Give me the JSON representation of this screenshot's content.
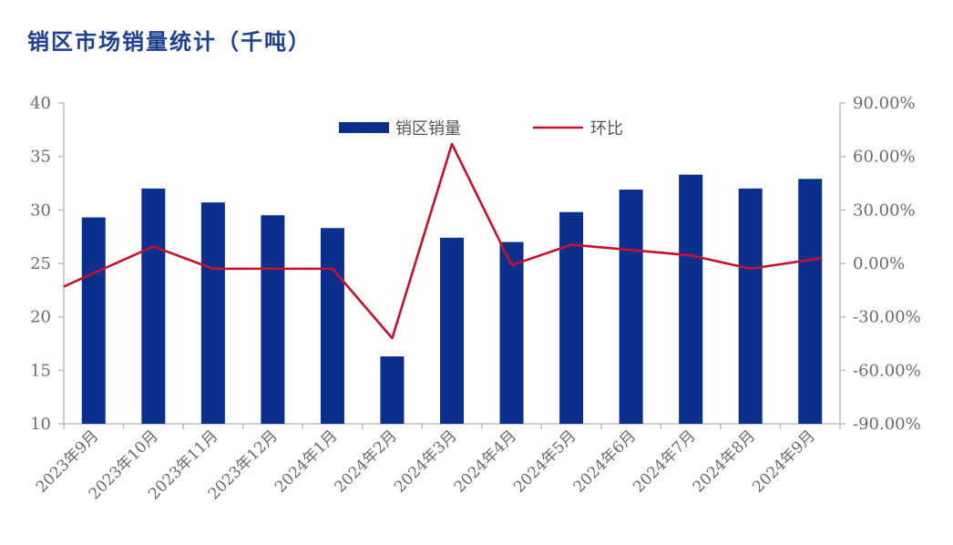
{
  "chart_data": {
    "type": "bar",
    "title": "销区市场销量统计（千吨）",
    "categories": [
      "2023年9月",
      "2023年10月",
      "2023年11月",
      "2023年12月",
      "2024年1月",
      "2024年2月",
      "2024年3月",
      "2024年4月",
      "2024年5月",
      "2024年6月",
      "2024年7月",
      "2024年8月",
      "2024年9月"
    ],
    "series": [
      {
        "name": "销区销量",
        "type": "bar",
        "axis": "left",
        "color": "#0a2f8c",
        "values": [
          29.3,
          32.0,
          30.7,
          29.5,
          28.3,
          16.3,
          27.4,
          27.0,
          29.8,
          31.9,
          33.3,
          32.0,
          32.9
        ]
      },
      {
        "name": "环比",
        "type": "line",
        "axis": "right",
        "color": "#c8102e",
        "values": [
          -13.0,
          9.5,
          -3.0,
          -3.0,
          -3.0,
          -42.0,
          67.0,
          -1.0,
          10.5,
          7.5,
          4.5,
          -3.0,
          3.0
        ]
      }
    ],
    "y_left": {
      "min": 10,
      "max": 40,
      "ticks": [
        "10",
        "15",
        "20",
        "25",
        "30",
        "35",
        "40"
      ]
    },
    "y_right": {
      "min": -90,
      "max": 90,
      "ticks": [
        "-90.00%",
        "-60.00%",
        "-30.00%",
        "0.00%",
        "30.00%",
        "60.00%",
        "90.00%"
      ]
    },
    "legend_position": "top-center",
    "grid": false
  }
}
